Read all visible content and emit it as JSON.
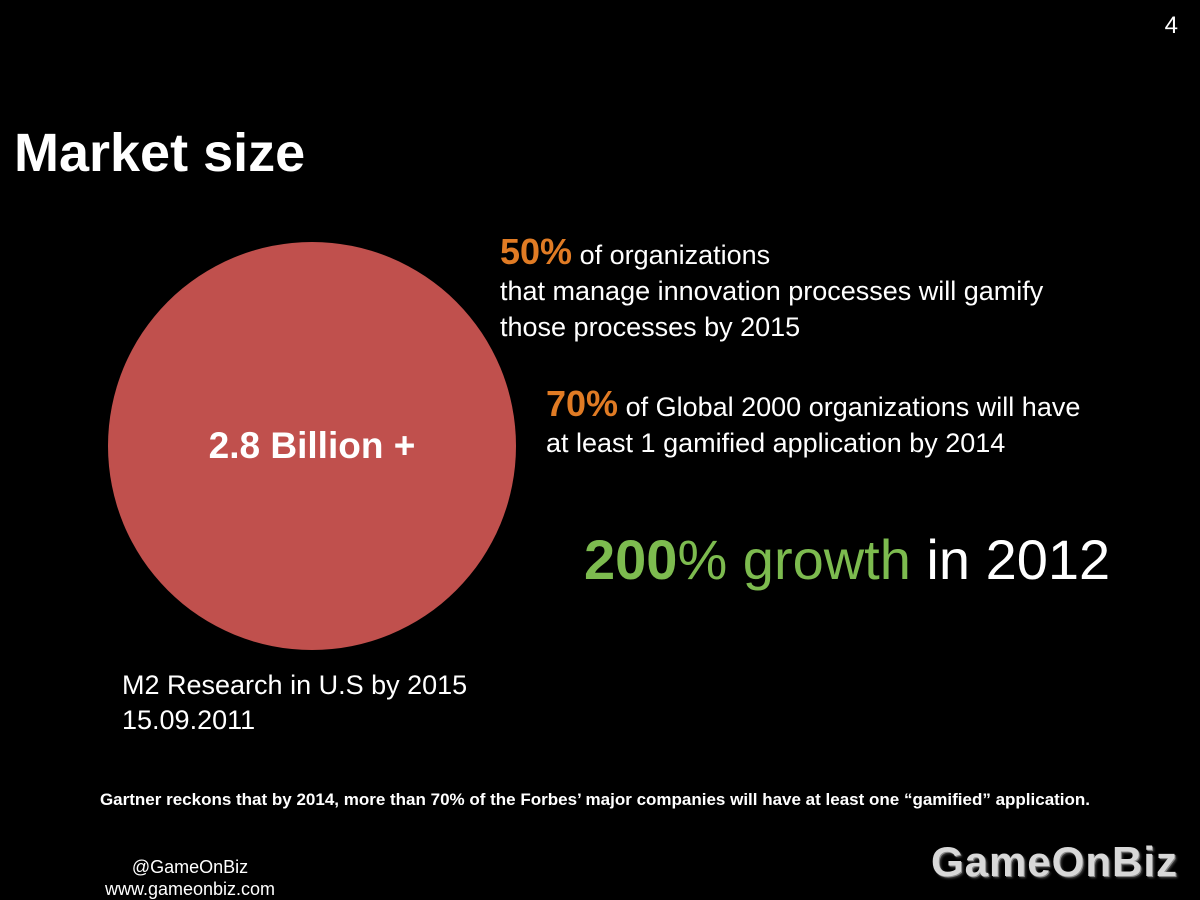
{
  "page_number": "4",
  "title": "Market size",
  "circle": {
    "label": "2.8 Billion +",
    "color": "#c0504d"
  },
  "stats": [
    {
      "percent": "50%",
      "lead": " of organizations",
      "lines": [
        "that manage innovation processes will gamify",
        "those processes by 2015"
      ]
    },
    {
      "percent": "70%",
      "lead": " of Global 2000 organizations will have",
      "lines": [
        "at least 1 gamified application by 2014"
      ]
    }
  ],
  "growth": {
    "number": "200",
    "percent_sign": "%",
    "word": " growth",
    "tail": " in 2012"
  },
  "source": {
    "line1": "M2 Research in U.S by 2015",
    "line2": "15.09.2011"
  },
  "gartner_note": "Gartner reckons that by 2014, more than 70% of the Forbes’ major companies will have at least one “gamified” application.",
  "contact": {
    "handle": "@GameOnBiz",
    "website": "www.gameonbiz.com"
  },
  "logo_text": "GameOnBiz",
  "colors": {
    "background": "#000000",
    "accent_orange": "#e07b24",
    "accent_green": "#7dbb4f",
    "text": "#ffffff"
  }
}
